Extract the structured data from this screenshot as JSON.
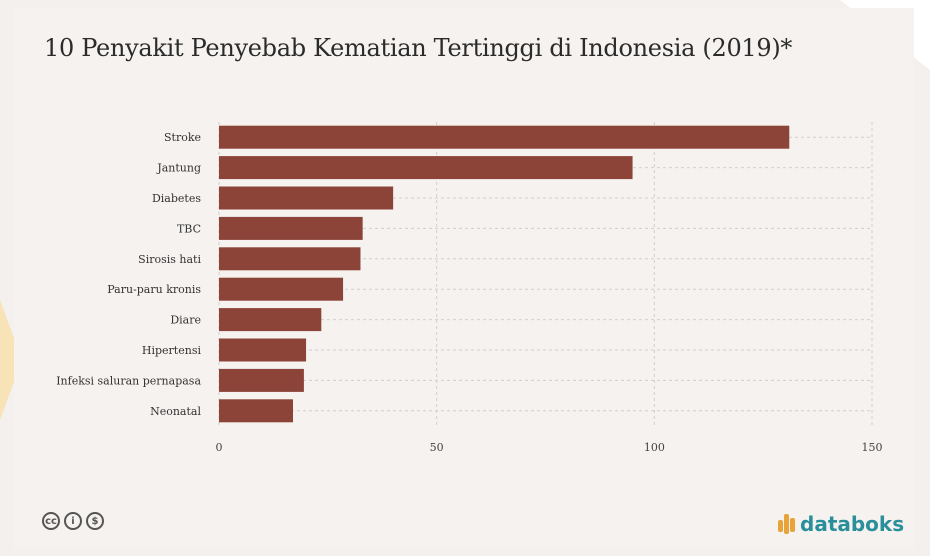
{
  "title": "10 Penyakit Penyebab Kematian Tertinggi di Indonesia (2019)*",
  "brand": "databoks",
  "license_icons": [
    "cc-icon",
    "by-icon",
    "nc-icon"
  ],
  "colors": {
    "bar": "#8b4437",
    "grid": "#cfcfcf",
    "background": "#f5f2f0",
    "brand": "#2a8f9a",
    "brand_mark": "#e8a33b"
  },
  "chart_data": {
    "type": "bar",
    "orientation": "horizontal",
    "categories": [
      "Stroke",
      "Jantung",
      "Diabetes",
      "TBC",
      "Sirosis hati",
      "Paru-paru kronis",
      "Diare",
      "Hipertensi",
      "Infeksi saluran pernapasa",
      "Neonatal"
    ],
    "values": [
      131,
      95,
      40,
      33,
      32.5,
      28.5,
      23.5,
      20,
      19.5,
      17
    ],
    "xlim": [
      0,
      150
    ],
    "xticks": [
      0,
      50,
      100,
      150
    ],
    "grid": true,
    "xlabel": "",
    "ylabel": ""
  }
}
